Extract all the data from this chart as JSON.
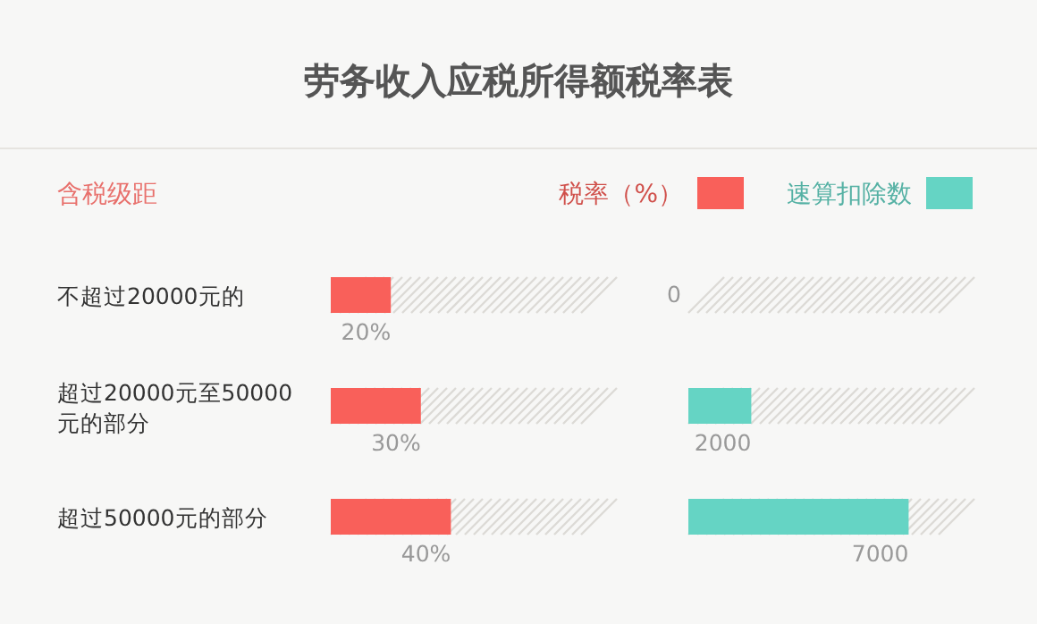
{
  "chart_data": [
    {
      "type": "bar",
      "orientation": "horizontal",
      "title": "劳务收入应税所得额税率表",
      "ylabel": "含税级距",
      "categories": [
        "不超过20000元的",
        "超过20000元至50000元的部分",
        "超过50000元的部分"
      ],
      "series": [
        {
          "name": "税率（%）",
          "color": "#f9605a",
          "values": [
            20,
            30,
            40
          ],
          "value_labels": [
            "20%",
            "30%",
            "40%"
          ]
        }
      ],
      "tick_labels": "y",
      "legend": "top right"
    },
    {
      "type": "bar",
      "orientation": "horizontal",
      "categories": [
        null,
        null,
        null
      ],
      "series": [
        {
          "name": "速算扣除数",
          "color": "#65d4c4",
          "values": [
            0,
            2000,
            7000
          ]
        }
      ],
      "tick_labels": false,
      "data_labels": true,
      "legend": "top right"
    }
  ]
}
